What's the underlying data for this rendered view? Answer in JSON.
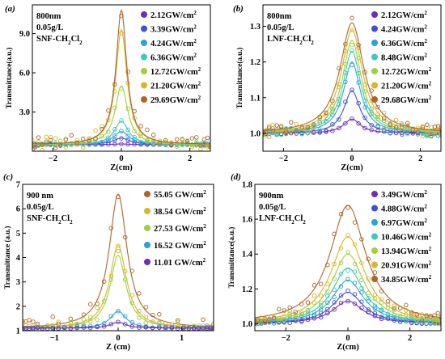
{
  "chart_data": [
    {
      "panel": "(a)",
      "type": "scatter",
      "annotation": [
        "800nm",
        "0.05g/L",
        "SNF-CH2Cl2"
      ],
      "xlabel": "Z(cm)",
      "ylabel": "Transmittance(a.u.)",
      "xlim": [
        -2.6,
        2.6
      ],
      "ylim": [
        0,
        11.2
      ],
      "xticks": [
        -2,
        0,
        2
      ],
      "xticklabels": [
        "−2",
        "0",
        "2"
      ],
      "yticks": [
        3.0,
        6.0,
        9.0
      ],
      "yticklabels": [
        "3.0",
        "6.0",
        "9.0"
      ],
      "baseline": 0.5,
      "legend_placement": "top-right",
      "series": [
        {
          "name": "2.12GW/cm2",
          "label": "2.12GW/cm",
          "sup": "2",
          "color": "#6a2fb5",
          "peak": 0.55,
          "width": 0.35
        },
        {
          "name": "3.39GW/cm2",
          "label": "3.39GW/cm",
          "sup": "2",
          "color": "#3f4fd6",
          "peak": 1.0,
          "width": 0.3
        },
        {
          "name": "4.24GW/cm2",
          "label": "4.24GW/cm",
          "sup": "2",
          "color": "#2aa3d8",
          "peak": 1.5,
          "width": 0.28
        },
        {
          "name": "6.36GW/cm2",
          "label": "6.36GW/cm",
          "sup": "2",
          "color": "#3fc7b8",
          "peak": 2.3,
          "width": 0.25
        },
        {
          "name": "12.72GW/cm2",
          "label": "12.72GW/cm",
          "sup": "2",
          "color": "#9ed13a",
          "peak": 5.0,
          "width": 0.22
        },
        {
          "name": "21.20GW/cm2",
          "label": "21.20GW/cm",
          "sup": "2",
          "color": "#d8b52a",
          "peak": 9.3,
          "width": 0.2
        },
        {
          "name": "29.69GW/cm2",
          "label": "29.69GW/cm",
          "sup": "2",
          "color": "#b0642a",
          "peak": 10.8,
          "width": 0.19
        }
      ]
    },
    {
      "panel": "(b)",
      "type": "scatter",
      "annotation": [
        "800nm",
        "0.05g/L",
        "LNF-CH2Cl2"
      ],
      "xlabel": "Z(cm)",
      "ylabel": "Transmittance(a.u.)",
      "xlim": [
        -2.6,
        2.6
      ],
      "ylim": [
        0.95,
        1.36
      ],
      "xticks": [
        -2,
        0,
        2
      ],
      "xticklabels": [
        "−2",
        "0",
        "2"
      ],
      "yticks": [
        1.0,
        1.1,
        1.2,
        1.3
      ],
      "yticklabels": [
        "1.0",
        "1.1",
        "1.2",
        "1.3"
      ],
      "baseline": 1.0,
      "legend_placement": "top-right",
      "series": [
        {
          "name": "2.12GW/cm2",
          "label": "2.12GW/cm",
          "sup": "2",
          "color": "#6a2fb5",
          "peak": 1.04,
          "width": 0.3
        },
        {
          "name": "4.24GW/cm2",
          "label": "4.24GW/cm",
          "sup": "2",
          "color": "#3f4fd6",
          "peak": 1.12,
          "width": 0.28
        },
        {
          "name": "6.36GW/cm2",
          "label": "6.36GW/cm",
          "sup": "2",
          "color": "#2aa3d8",
          "peak": 1.2,
          "width": 0.3
        },
        {
          "name": "8.48GW/cm2",
          "label": "8.48GW/cm",
          "sup": "2",
          "color": "#3fc7b8",
          "peak": 1.23,
          "width": 0.32
        },
        {
          "name": "12.72GW/cm2",
          "label": "12.72GW/cm",
          "sup": "2",
          "color": "#9ed13a",
          "peak": 1.26,
          "width": 0.34
        },
        {
          "name": "21.20GW/cm2",
          "label": "21.20GW/cm",
          "sup": "2",
          "color": "#d8b52a",
          "peak": 1.29,
          "width": 0.38
        },
        {
          "name": "29.68GW/cm2",
          "label": "29.68GW/cm",
          "sup": "2",
          "color": "#b0642a",
          "peak": 1.31,
          "width": 0.42
        }
      ]
    },
    {
      "panel": "(c)",
      "type": "scatter",
      "annotation": [
        "900 nm",
        "0.05g/L",
        "SNF-CH2Cl2"
      ],
      "xlabel": "Z (cm)",
      "ylabel": "Transmittance (a.u.)",
      "xlim": [
        -1.5,
        1.5
      ],
      "ylim": [
        1,
        7
      ],
      "xticks": [
        -1,
        0,
        1
      ],
      "xticklabels": [
        "−1",
        "0",
        "1"
      ],
      "yticks": [
        1,
        2,
        3,
        4,
        5,
        6,
        7
      ],
      "yticklabels": [
        "1",
        "2",
        "3",
        "4",
        "5",
        "6",
        "7"
      ],
      "baseline": 1.1,
      "legend_placement": "top-right",
      "series": [
        {
          "name": "55.05 GW/cm2",
          "label": "55.05 GW/cm",
          "sup": "2",
          "color": "#b0642a",
          "peak": 6.6,
          "width": 0.17
        },
        {
          "name": "38.54 GW/cm2",
          "label": "38.54 GW/cm",
          "sup": "2",
          "color": "#d8b52a",
          "peak": 4.5,
          "width": 0.16
        },
        {
          "name": "27.53 GW/cm2",
          "label": "27.53 GW/cm",
          "sup": "2",
          "color": "#9ed13a",
          "peak": 4.1,
          "width": 0.15
        },
        {
          "name": "16.52 GW/cm2",
          "label": "16.52 GW/cm",
          "sup": "2",
          "color": "#2aa3d8",
          "peak": 1.8,
          "width": 0.15
        },
        {
          "name": "11.01 GW/cm2",
          "label": "11.01 GW/cm",
          "sup": "2",
          "color": "#6a2fb5",
          "peak": 1.35,
          "width": 0.15
        }
      ]
    },
    {
      "panel": "(d)",
      "type": "scatter",
      "annotation": [
        "900nm",
        "0.05g/L",
        "LNF-CH2Cl2"
      ],
      "xlabel": "Z(cm)",
      "ylabel": "Transmittance(a.u.)",
      "xlim": [
        -3.0,
        3.0
      ],
      "ylim": [
        0.96,
        1.8
      ],
      "xticks": [
        -2,
        0,
        2
      ],
      "xticklabels": [
        "−2",
        "0",
        "2"
      ],
      "yticks": [
        1.0,
        1.2,
        1.4,
        1.6,
        1.8
      ],
      "yticklabels": [
        "1.0",
        "1.2",
        "1.4",
        "1.6",
        "1.8"
      ],
      "baseline": 1.0,
      "legend_placement": "top-right",
      "series": [
        {
          "name": "3.49GW/cm2",
          "label": "3.49GW/cm",
          "sup": "2",
          "color": "#6a2fb5",
          "peak": 1.13,
          "width": 0.6
        },
        {
          "name": "4.88GW/cm2",
          "label": "4.88GW/cm",
          "sup": "2",
          "color": "#3f4fd6",
          "peak": 1.18,
          "width": 0.6
        },
        {
          "name": "6.97GW/cm2",
          "label": "6.97GW/cm",
          "sup": "2",
          "color": "#2aa3d8",
          "peak": 1.25,
          "width": 0.62
        },
        {
          "name": "10.46GW/cm2",
          "label": "10.46GW/cm",
          "sup": "2",
          "color": "#3fc7b8",
          "peak": 1.32,
          "width": 0.62
        },
        {
          "name": "13.94GW/cm2",
          "label": "13.94GW/cm",
          "sup": "2",
          "color": "#9ed13a",
          "peak": 1.4,
          "width": 0.64
        },
        {
          "name": "20.91GW/cm2",
          "label": "20.91GW/cm",
          "sup": "2",
          "color": "#d8b52a",
          "peak": 1.5,
          "width": 0.66
        },
        {
          "name": "34.85GW/cm2",
          "label": "34.85GW/cm",
          "sup": "2",
          "color": "#b0642a",
          "peak": 1.68,
          "width": 0.7
        }
      ]
    }
  ]
}
